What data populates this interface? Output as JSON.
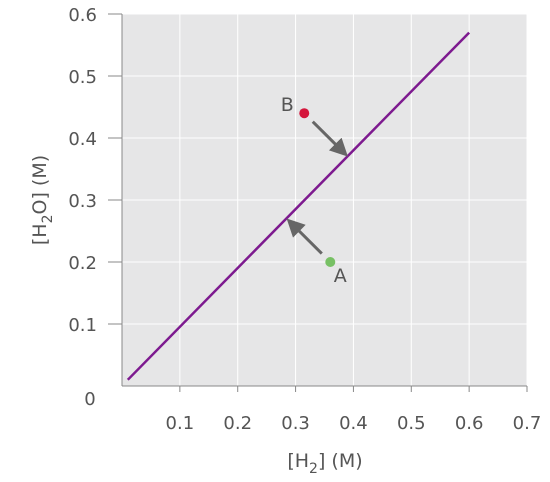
{
  "chart_data": {
    "type": "line",
    "title": "",
    "xlabel": {
      "open": "[H",
      "sub": "2",
      "close": "] (M)"
    },
    "ylabel": {
      "open": "[H",
      "sub": "2",
      "close": "O] (M)"
    },
    "xlim": [
      0,
      0.7
    ],
    "ylim": [
      0,
      0.6
    ],
    "grid": true,
    "background_color": "#e6e6e7",
    "x_ticks": [
      "0.1",
      "0.2",
      "0.3",
      "0.4",
      "0.5",
      "0.6",
      "0.7"
    ],
    "y_ticks": [
      "0.1",
      "0.2",
      "0.3",
      "0.4",
      "0.5",
      "0.6"
    ],
    "origin_label": "0",
    "line": {
      "x": [
        0.01,
        0.6
      ],
      "y": [
        0.01,
        0.57
      ],
      "color": "#7d1a8f"
    },
    "points": [
      {
        "label": "B",
        "x": 0.315,
        "y": 0.44,
        "color": "#d4163c",
        "arrow_to": {
          "x": 0.385,
          "y": 0.375
        }
      },
      {
        "label": "A",
        "x": 0.36,
        "y": 0.2,
        "color": "#77c064",
        "arrow_to": {
          "x": 0.29,
          "y": 0.265
        }
      }
    ],
    "arrow_color": "#666666"
  }
}
